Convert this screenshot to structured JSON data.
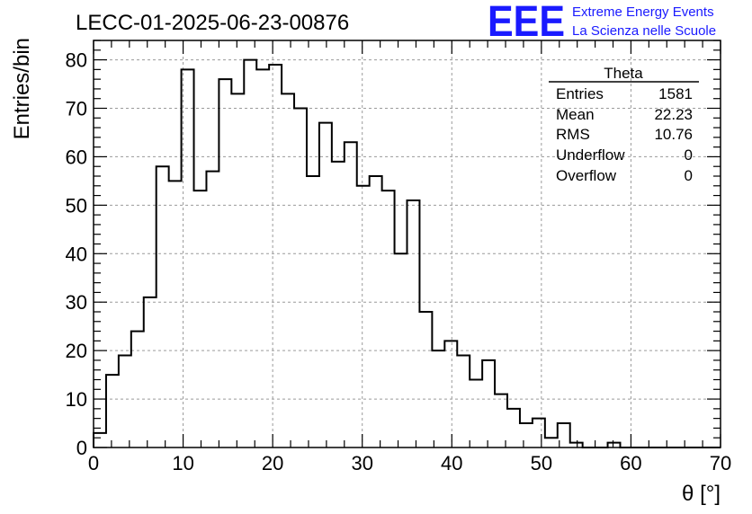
{
  "title": "LECC-01-2025-06-23-00876",
  "logo": {
    "mark": "EEE",
    "line1": "Extreme Energy Events",
    "line2": "La Scienza nelle Scuole",
    "color": "#1a1aff"
  },
  "stats_box": {
    "title": "Theta",
    "rows": [
      {
        "label": "Entries",
        "value": "1581"
      },
      {
        "label": "Mean",
        "value": "22.23"
      },
      {
        "label": "RMS",
        "value": "10.76"
      },
      {
        "label": "Underflow",
        "value": "0"
      },
      {
        "label": "Overflow",
        "value": "0"
      }
    ]
  },
  "chart_data": {
    "type": "bar",
    "histogram": true,
    "xlabel": "θ [°]",
    "ylabel": "Entries/bin",
    "xlim": [
      0,
      70
    ],
    "ylim": [
      0,
      84
    ],
    "bin_width": 1.4,
    "x_ticks": [
      0,
      10,
      20,
      30,
      40,
      50,
      60,
      70
    ],
    "y_ticks": [
      0,
      10,
      20,
      30,
      40,
      50,
      60,
      70,
      80
    ],
    "grid": true,
    "values": [
      3,
      15,
      19,
      24,
      31,
      58,
      55,
      78,
      53,
      57,
      76,
      73,
      80,
      78,
      79,
      73,
      70,
      56,
      67,
      59,
      63,
      54,
      56,
      53,
      40,
      51,
      28,
      20,
      22,
      19,
      14,
      18,
      11,
      8,
      5,
      6,
      2,
      5,
      1,
      0,
      0,
      1,
      0,
      0,
      0,
      0,
      0,
      0,
      0,
      0
    ]
  }
}
